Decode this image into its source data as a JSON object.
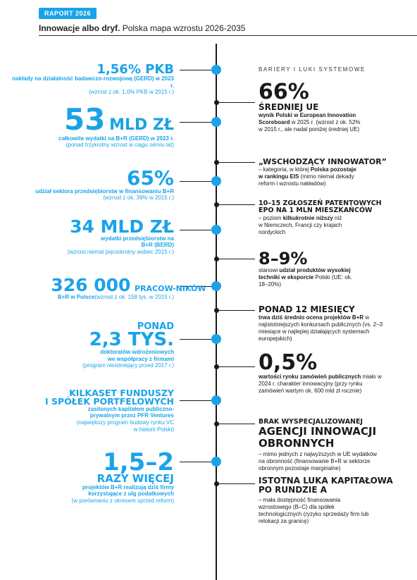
{
  "header": {
    "badge": "RAPORT 2026",
    "title_bold": "Innowacje albo dryf.",
    "title_rest": " Polska mapa wzrostu 2026-2035"
  },
  "barriers_title": "BARIERY I LUKI SYSTEMOWE",
  "left": [
    {
      "big": "1,56% PKB",
      "desc": "nakłady na działalność badawczo-rozwojową (GERD) w 2023 r.",
      "note": "(wzrost z ok. 1,0% PKB w 2015 r.)"
    },
    {
      "big": "53",
      "big2": "MLD ZŁ",
      "desc": "całkowite wydatki na B+R (GERD) w 2023 r.",
      "note": "(ponad trzykrotny wzrost w ciągu ośmiu lat)"
    },
    {
      "big": "65%",
      "desc": "udział sektora przedsiębiorstw w finansowaniu B+R",
      "note": "(wzrost z ok. 39% w 2015 r.)"
    },
    {
      "big": "34 MLD ZŁ",
      "desc": "wydatki przedsiębiorstw na B+R (BERD)",
      "note": "(wzrost niemal pięciokrotny wobec 2015 r.)"
    },
    {
      "big": "326 000",
      "big2": "PRACOW-NIKÓW",
      "desc": "B+R w Polsce",
      "note": "(wzrost z ok. 158 tys. w 2015 r.)"
    },
    {
      "big": "PONAD",
      "big2": "2,3 TYS.",
      "desc": "doktoratów wdrożeniowych we współpracy z firmami",
      "note": "(program nieistniejący przed 2017 r.)"
    },
    {
      "big": "KILKASET FUNDUSZY",
      "big2": "I SPÓŁEK PORTFELOWYCH",
      "desc": "zasilonych kapitałem publiczno-prywatnym przez PFR Ventures",
      "note": "(największy program budowy rynku VC w historii Polski)"
    },
    {
      "big": "1,5–2",
      "big2": "RAZY WIĘCEJ",
      "desc": "projektów B+R realizują dziś firmy korzystające z ulg podatkowych",
      "note": "(w porównaniu z okresem sprzed reform)"
    }
  ],
  "right": [
    {
      "big": "66%",
      "head": "ŚREDNIEJ UE",
      "desc_b": "wynik Polski w European Innovation Scoreboard",
      "desc": " w 2025 r. (wzrost z ok. 52% w 2015 r., ale nadal poniżej średniej UE)"
    },
    {
      "head": "„WSCHODZĄCY INNOWATOR”",
      "desc": "– kategoria, w której ",
      "desc_b": "Polska pozostaje w rankingu EIS",
      "desc2": " (mimo niemal dekady reform i wzrostu nakładów)"
    },
    {
      "head": "10–15 ZGŁOSZEŃ PATENTOWYCH EPO NA 1 MLN MIESZKAŃCÓW",
      "desc": "– poziom ",
      "desc_b": "kilkukrotnie niższy",
      "desc2": " niż w Niemczech, Francji czy krajach nordyckich"
    },
    {
      "big": "8–9%",
      "desc": "stanowi ",
      "desc_b": "udział produktów wysokiej techniki w eksporcie",
      "desc2": " Polski (UE: ok. 18–20%)"
    },
    {
      "head": "PONAD 12 MIESIĘCY",
      "desc_b": "trwa dziś średnio ocena projektów B+R",
      "desc": " w najistotniejszych konkursach publicznych (vs. 2–3 miesiące w najlepiej działających systemach europejskich)"
    },
    {
      "big": "0,5%",
      "desc_b": "wartości rynku zamówień publicznych",
      "desc": " miało w 2024 r. charakter innowacyjny (przy rynku zamówień wartym ok. 600 mld zł rocznie)"
    },
    {
      "head": "BRAK WYSPECJALIZOWANEJ",
      "head2": "AGENCJI INNOWACJI OBRONNYCH",
      "desc": "– mimo jednych z najwyższych w UE wydatków na obronność (finansowanie B+R w sektorze obronnym pozostaje marginalne)"
    },
    {
      "head": "ISTOTNA LUKA KAPITAŁOWA PO RUNDZIE A",
      "desc": "– mała dostępność finansowania wzrostowego (B–C) dla spółek technologicznych (ryzyko sprzedaży firm lub relokacji za granicę)"
    }
  ],
  "colors": {
    "accent": "#1aa3e8",
    "ink": "#1a1a1a"
  }
}
